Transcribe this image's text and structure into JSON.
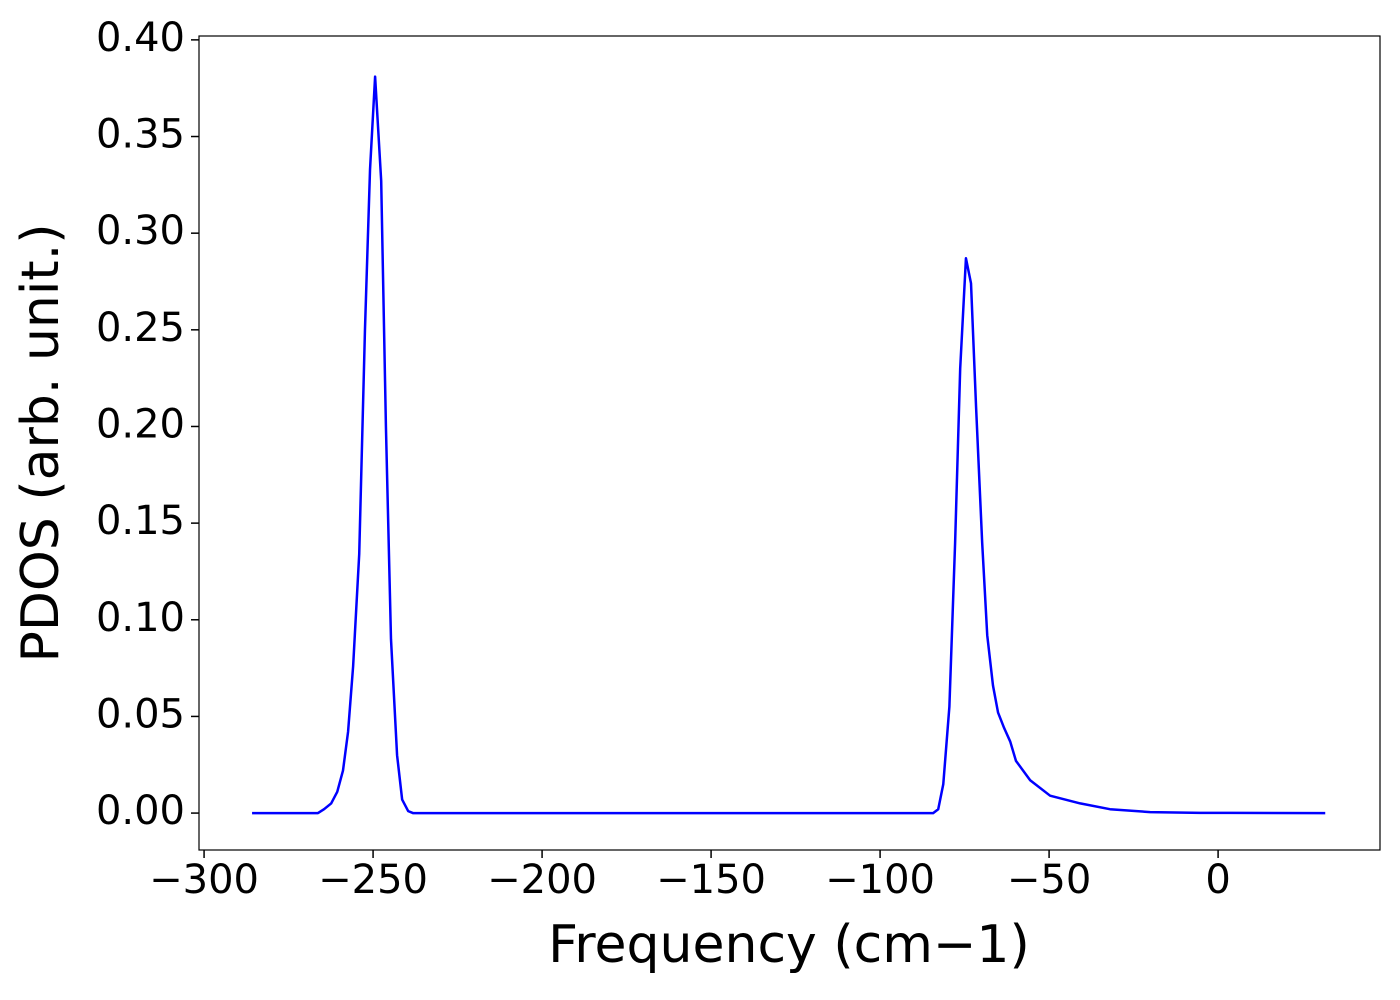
{
  "chart_data": {
    "type": "line",
    "x_label": "Frequency (cm−1)",
    "y_label": "PDOS (arb. unit.)",
    "x": [
      -285.8,
      -266.3,
      -264.5,
      -262.4,
      -260.6,
      -258.9,
      -257.4,
      -255.9,
      -254.1,
      -252.4,
      -250.9,
      -249.4,
      -247.6,
      -246.2,
      -244.7,
      -242.9,
      -241.4,
      -239.6,
      -238.2,
      -84.3,
      -82.8,
      -81.3,
      -79.5,
      -77.8,
      -76.3,
      -74.6,
      -73.1,
      -71.6,
      -69.8,
      -68.3,
      -66.6,
      -65.1,
      -63.3,
      -61.5,
      -59.8,
      -55.6,
      -49.7,
      -40.8,
      -32.0,
      -20.1,
      -5.3,
      3.6,
      31.7
    ],
    "series": [
      {
        "color": "#0000ff",
        "values": [
          0,
          0,
          0.002,
          0.005,
          0.011,
          0.022,
          0.042,
          0.076,
          0.134,
          0.25,
          0.333,
          0.381,
          0.327,
          0.2,
          0.09,
          0.03,
          0.007,
          0.001,
          0,
          0,
          0.002,
          0.015,
          0.055,
          0.14,
          0.23,
          0.287,
          0.274,
          0.21,
          0.14,
          0.092,
          0.066,
          0.052,
          0.044,
          0.037,
          0.027,
          0.017,
          0.009,
          0.005,
          0.002,
          0.0005,
          0.0001,
          0.0001,
          0
        ]
      }
    ],
    "xlim": [
      -301.5,
      47.9
    ],
    "ylim": [
      -0.0191,
      0.402
    ],
    "xticks": [
      {
        "value": -300,
        "label": "−300"
      },
      {
        "value": -250,
        "label": "−250"
      },
      {
        "value": -200,
        "label": "−200"
      },
      {
        "value": -150,
        "label": "−150"
      },
      {
        "value": -100,
        "label": "−100"
      },
      {
        "value": -50,
        "label": "−50"
      },
      0
    ],
    "yticks": [
      {
        "value": 0,
        "label": "0.00"
      },
      {
        "value": 0.05,
        "label": "0.05"
      },
      {
        "value": 0.1,
        "label": "0.10"
      },
      {
        "value": 0.15,
        "label": "0.15"
      },
      {
        "value": 0.2,
        "label": "0.20"
      },
      {
        "value": 0.25,
        "label": "0.25"
      },
      {
        "value": 0.3,
        "label": "0.30"
      },
      {
        "value": 0.35,
        "label": "0.35"
      },
      {
        "value": 0.4,
        "label": "0.40"
      }
    ],
    "grid": false
  }
}
